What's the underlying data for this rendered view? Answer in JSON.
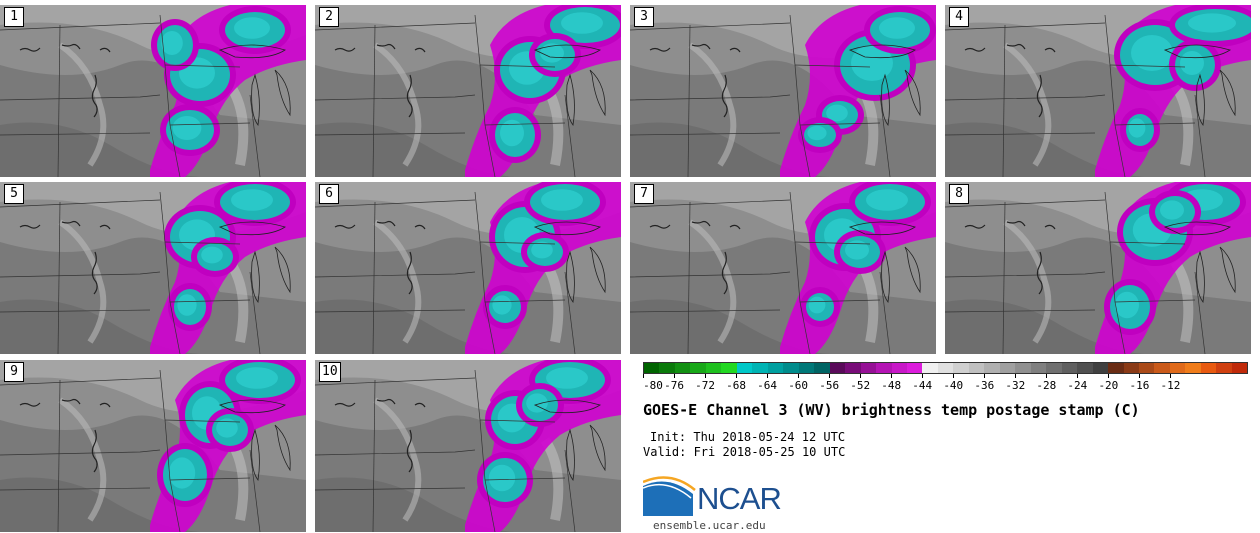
{
  "panels": [
    "1",
    "2",
    "3",
    "4",
    "5",
    "6",
    "7",
    "8",
    "9",
    "10"
  ],
  "colorbar": {
    "ticks": [
      "-80",
      "-76",
      "-72",
      "-68",
      "-64",
      "-60",
      "-56",
      "-52",
      "-48",
      "-44",
      "-40",
      "-36",
      "-32",
      "-28",
      "-24",
      "-20",
      "-16",
      "-12"
    ],
    "colors": [
      "#006400",
      "#0a7a0a",
      "#129012",
      "#18a818",
      "#1ec01e",
      "#22d822",
      "#00c8c8",
      "#00b4b4",
      "#00a0a0",
      "#008c8c",
      "#007878",
      "#006464",
      "#5a0a5a",
      "#780c78",
      "#961096",
      "#b414b4",
      "#c818c8",
      "#dc1cdc",
      "#f0f0f0",
      "#e0e0e0",
      "#d0d0d0",
      "#c0c0c0",
      "#b0b0b0",
      "#a0a0a0",
      "#909090",
      "#808080",
      "#707070",
      "#606060",
      "#505050",
      "#404040",
      "#6a2c14",
      "#8a3a16",
      "#aa4a18",
      "#ca5a1a",
      "#e06a1a",
      "#f07c1a",
      "#e85a10",
      "#d04010",
      "#c02a0a"
    ]
  },
  "title": "GOES-E Channel 3 (WV) brightness temp postage stamp (C)",
  "init": "Init: Thu 2018-05-24 12 UTC",
  "valid": "Valid: Fri 2018-05-25 10 UTC",
  "logo": {
    "text": "NCAR",
    "brand_color": "#1d4f8f"
  },
  "website": "ensemble.ucar.edu"
}
